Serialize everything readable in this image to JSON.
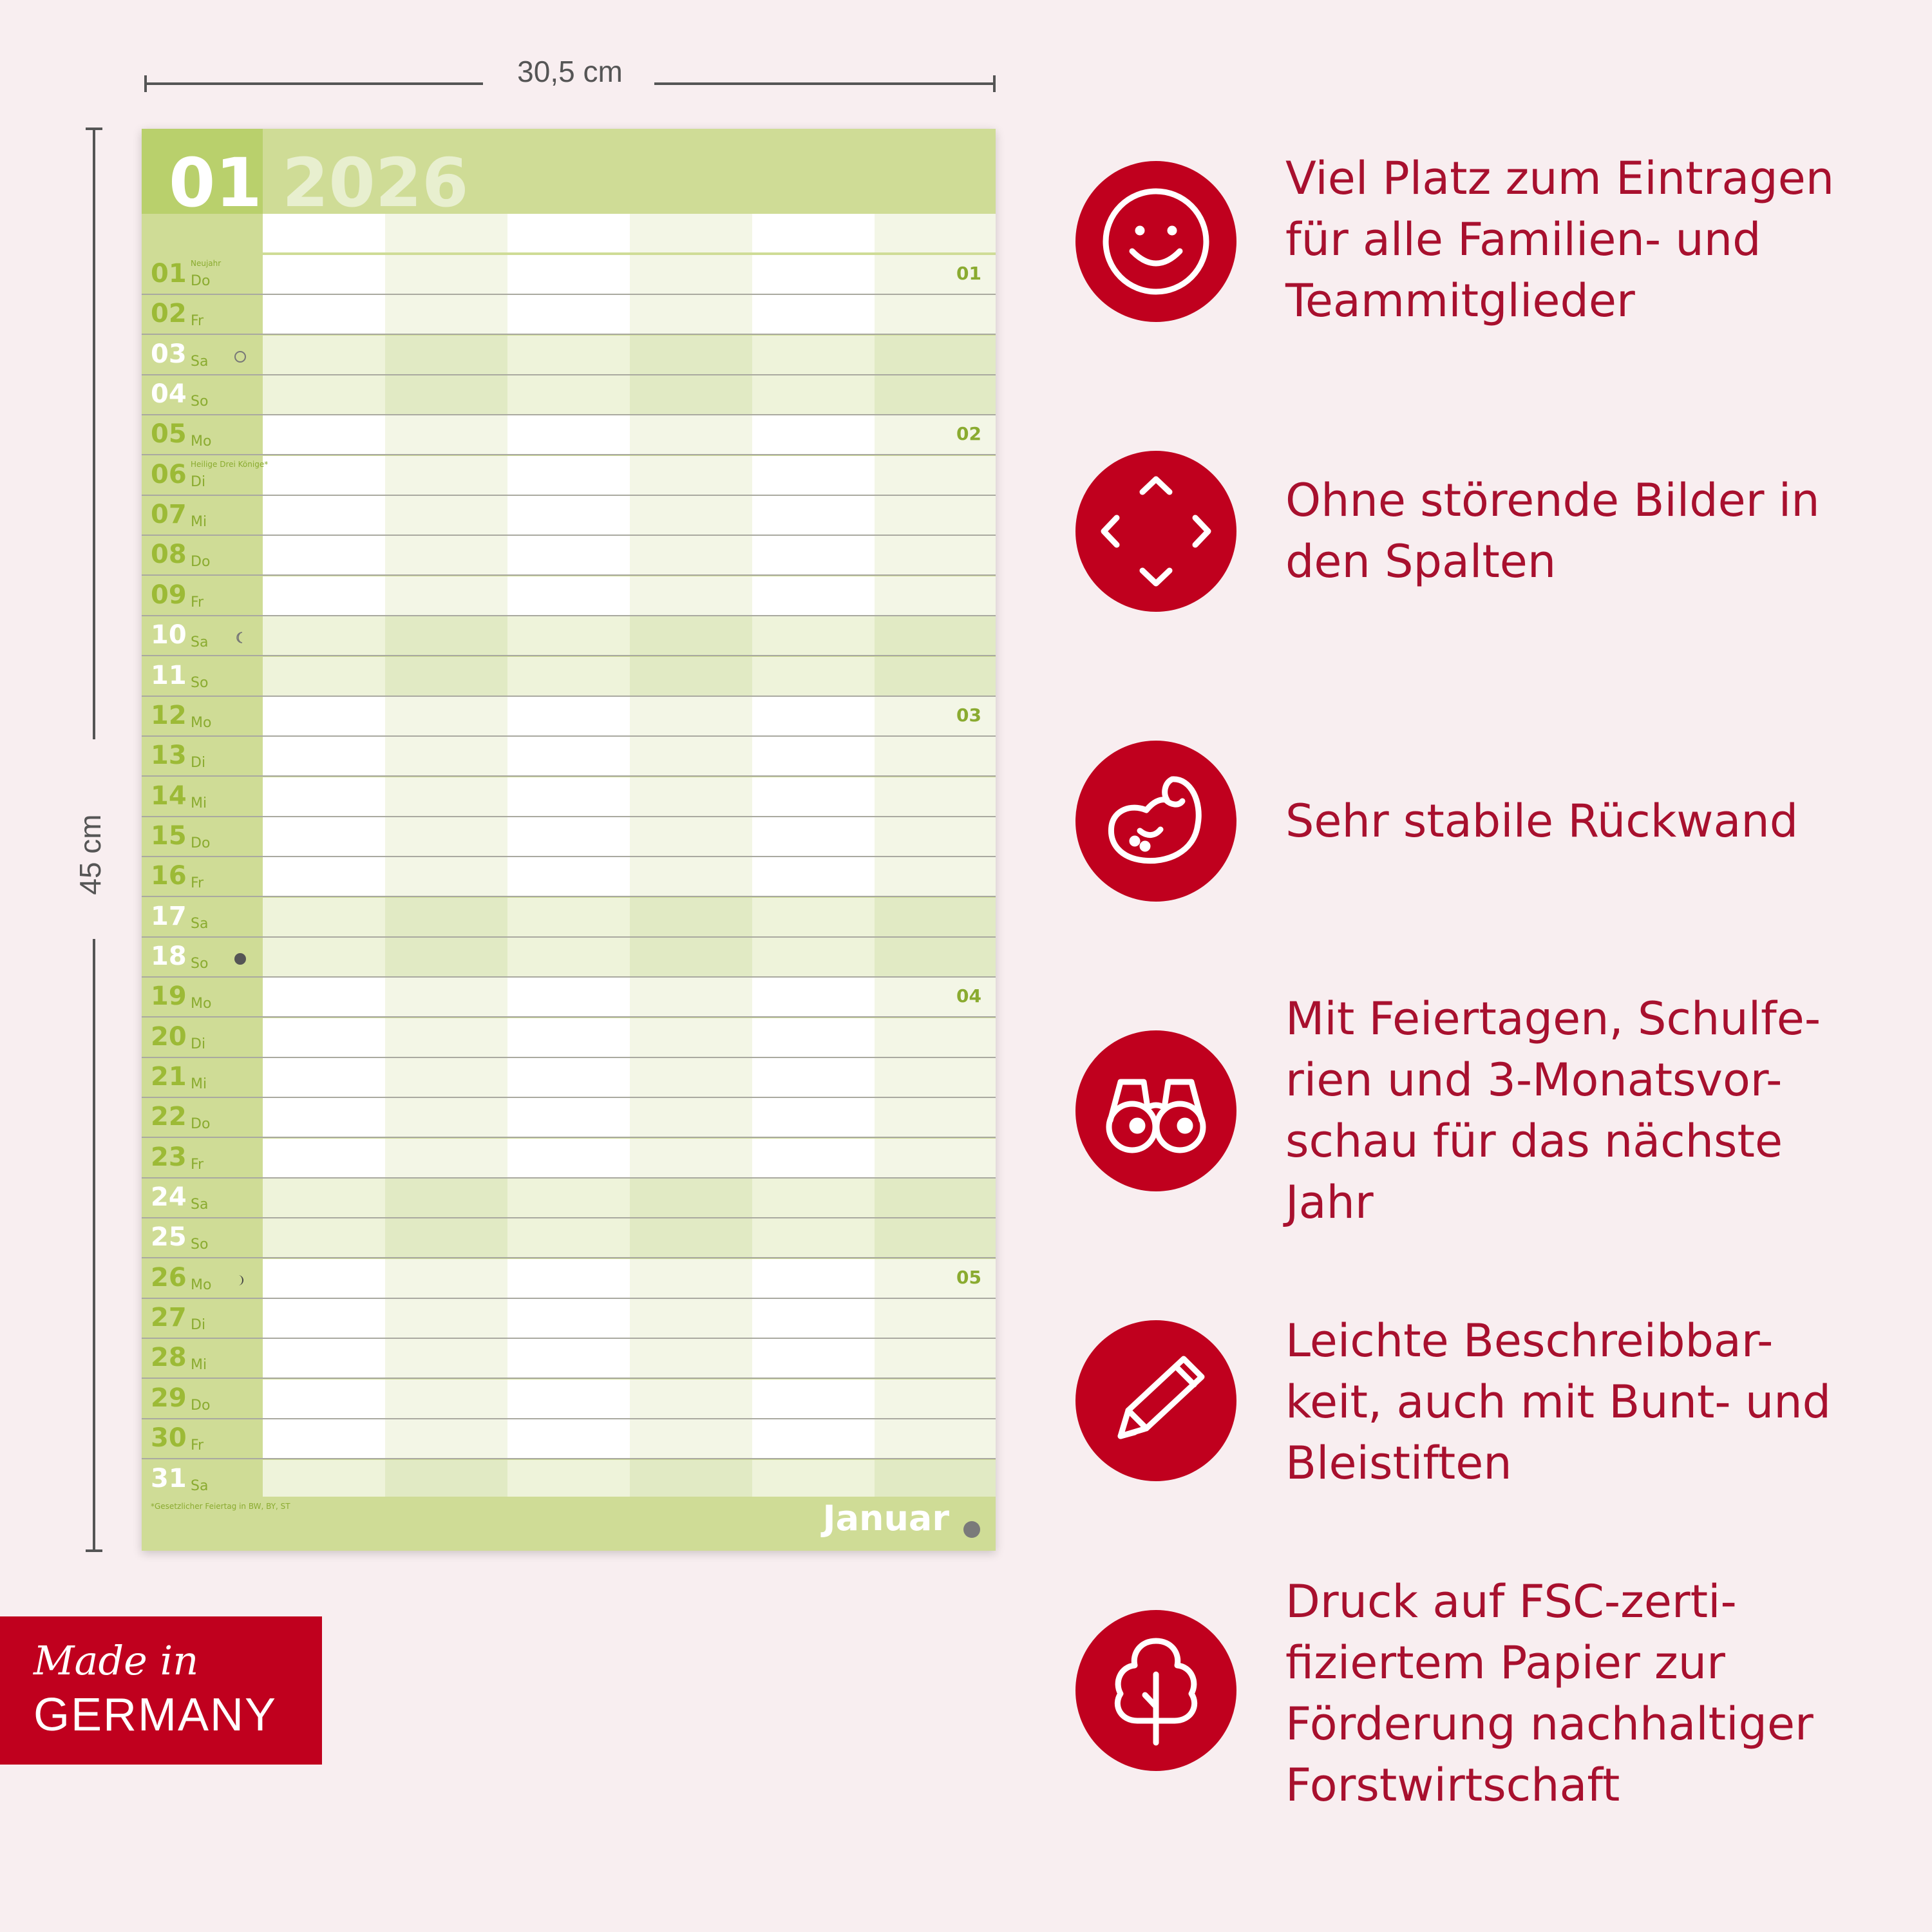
{
  "dimensions": {
    "width_label": "30,5 cm",
    "height_label": "45 cm"
  },
  "calendar": {
    "month_num": "01",
    "year": "2026",
    "month_name": "Januar",
    "footnote": "*Gesetzlicher Feiertag in BW, BY, ST",
    "days": [
      {
        "num": "01",
        "name": "Do",
        "holiday": "Neujahr",
        "weekend": false,
        "week": "01",
        "moon": ""
      },
      {
        "num": "02",
        "name": "Fr",
        "holiday": "",
        "weekend": false,
        "week": "",
        "moon": ""
      },
      {
        "num": "03",
        "name": "Sa",
        "holiday": "",
        "weekend": true,
        "week": "",
        "moon": "full"
      },
      {
        "num": "04",
        "name": "So",
        "holiday": "",
        "weekend": true,
        "week": "",
        "moon": ""
      },
      {
        "num": "05",
        "name": "Mo",
        "holiday": "",
        "weekend": false,
        "week": "02",
        "moon": ""
      },
      {
        "num": "06",
        "name": "Di",
        "holiday": "Heilige Drei Könige*",
        "weekend": false,
        "week": "",
        "moon": ""
      },
      {
        "num": "07",
        "name": "Mi",
        "holiday": "",
        "weekend": false,
        "week": "",
        "moon": ""
      },
      {
        "num": "08",
        "name": "Do",
        "holiday": "",
        "weekend": false,
        "week": "",
        "moon": ""
      },
      {
        "num": "09",
        "name": "Fr",
        "holiday": "",
        "weekend": false,
        "week": "",
        "moon": ""
      },
      {
        "num": "10",
        "name": "Sa",
        "holiday": "",
        "weekend": true,
        "week": "",
        "moon": "last"
      },
      {
        "num": "11",
        "name": "So",
        "holiday": "",
        "weekend": true,
        "week": "",
        "moon": ""
      },
      {
        "num": "12",
        "name": "Mo",
        "holiday": "",
        "weekend": false,
        "week": "03",
        "moon": ""
      },
      {
        "num": "13",
        "name": "Di",
        "holiday": "",
        "weekend": false,
        "week": "",
        "moon": ""
      },
      {
        "num": "14",
        "name": "Mi",
        "holiday": "",
        "weekend": false,
        "week": "",
        "moon": ""
      },
      {
        "num": "15",
        "name": "Do",
        "holiday": "",
        "weekend": false,
        "week": "",
        "moon": ""
      },
      {
        "num": "16",
        "name": "Fr",
        "holiday": "",
        "weekend": false,
        "week": "",
        "moon": ""
      },
      {
        "num": "17",
        "name": "Sa",
        "holiday": "",
        "weekend": true,
        "week": "",
        "moon": ""
      },
      {
        "num": "18",
        "name": "So",
        "holiday": "",
        "weekend": true,
        "week": "",
        "moon": "new"
      },
      {
        "num": "19",
        "name": "Mo",
        "holiday": "",
        "weekend": false,
        "week": "04",
        "moon": ""
      },
      {
        "num": "20",
        "name": "Di",
        "holiday": "",
        "weekend": false,
        "week": "",
        "moon": ""
      },
      {
        "num": "21",
        "name": "Mi",
        "holiday": "",
        "weekend": false,
        "week": "",
        "moon": ""
      },
      {
        "num": "22",
        "name": "Do",
        "holiday": "",
        "weekend": false,
        "week": "",
        "moon": ""
      },
      {
        "num": "23",
        "name": "Fr",
        "holiday": "",
        "weekend": false,
        "week": "",
        "moon": ""
      },
      {
        "num": "24",
        "name": "Sa",
        "holiday": "",
        "weekend": true,
        "week": "",
        "moon": ""
      },
      {
        "num": "25",
        "name": "So",
        "holiday": "",
        "weekend": true,
        "week": "",
        "moon": ""
      },
      {
        "num": "26",
        "name": "Mo",
        "holiday": "",
        "weekend": false,
        "week": "05",
        "moon": "first"
      },
      {
        "num": "27",
        "name": "Di",
        "holiday": "",
        "weekend": false,
        "week": "",
        "moon": ""
      },
      {
        "num": "28",
        "name": "Mi",
        "holiday": "",
        "weekend": false,
        "week": "",
        "moon": ""
      },
      {
        "num": "29",
        "name": "Do",
        "holiday": "",
        "weekend": false,
        "week": "",
        "moon": ""
      },
      {
        "num": "30",
        "name": "Fr",
        "holiday": "",
        "weekend": false,
        "week": "",
        "moon": ""
      },
      {
        "num": "31",
        "name": "Sa",
        "holiday": "",
        "weekend": true,
        "week": "",
        "moon": ""
      }
    ],
    "colors": {
      "accent": "#cfdc96",
      "tab": "#b9d06c",
      "daynum": "#9cba36"
    }
  },
  "features": [
    {
      "icon": "smiley-icon",
      "text": "Viel Platz zum Eintragen\nfür alle Familien- und\nTeammitglieder"
    },
    {
      "icon": "expand-arrows-icon",
      "text": "Ohne störende Bilder in\nden Spalten"
    },
    {
      "icon": "muscle-arm-icon",
      "text": "Sehr stabile Rückwand"
    },
    {
      "icon": "binoculars-icon",
      "text": "Mit Feiertagen, Schulfe-\nrien und 3-Monatsvor-\nschau für das nächste\nJahr"
    },
    {
      "icon": "pencil-icon",
      "text": "Leichte Beschreibbar-\nkeit, auch mit Bunt- und\nBleistiften"
    },
    {
      "icon": "tree-icon",
      "text": "Druck auf FSC-zerti-\nfiziertem Papier zur\nFörderung nachhaltiger\nForstwirtschaft"
    }
  ],
  "badge": {
    "script": "Made in",
    "country": "GERMANY"
  },
  "theme": {
    "red": "#c0001e",
    "text_red": "#a8102e",
    "background": "#f8eef0"
  }
}
